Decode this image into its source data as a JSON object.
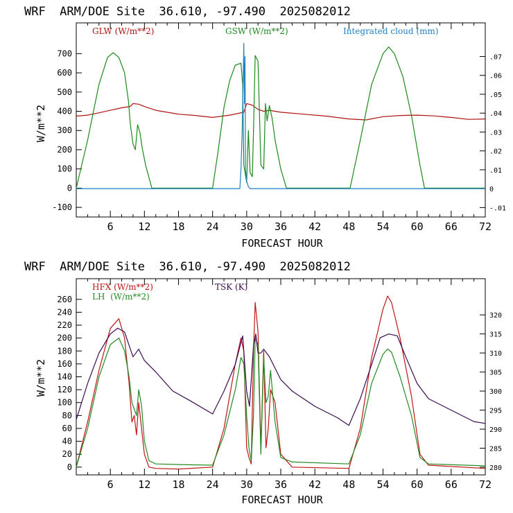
{
  "chart_data": [
    {
      "type": "line",
      "title": "WRF  ARM/DOE Site  36.610, -97.490  2025082012",
      "xlabel": "FORECAST HOUR",
      "ylabel": "W/m**2",
      "xlim": [
        0,
        72
      ],
      "ylim": [
        -150,
        860
      ],
      "y2lim": [
        -0.015,
        0.0878
      ],
      "xticks": [
        6,
        12,
        18,
        24,
        30,
        36,
        42,
        48,
        54,
        60,
        66,
        72
      ],
      "yticks": [
        -100,
        0,
        100,
        200,
        300,
        400,
        500,
        600,
        700
      ],
      "y2ticks": [
        -0.01,
        0,
        0.01,
        0.02,
        0.03,
        0.04,
        0.05,
        0.06,
        0.07
      ],
      "y2ticklabels": [
        "-.01",
        "0",
        ".01",
        ".02",
        ".03",
        ".04",
        ".05",
        ".06",
        ".07"
      ],
      "grid": false,
      "legend_placement": "top",
      "series": [
        {
          "name": "GLW (W/m**2)",
          "color": "#b01010",
          "axis": "left",
          "x": [
            0,
            2,
            4,
            6,
            8,
            9.5,
            10,
            11,
            12,
            14,
            18,
            21,
            24,
            27,
            29.5,
            30,
            31,
            32,
            33,
            34,
            36,
            40,
            44,
            48,
            51,
            54,
            57,
            60,
            63,
            66,
            69,
            72
          ],
          "y": [
            375,
            380,
            392,
            405,
            418,
            425,
            440,
            437,
            425,
            405,
            385,
            378,
            368,
            380,
            395,
            440,
            432,
            410,
            400,
            405,
            395,
            385,
            375,
            360,
            355,
            372,
            378,
            380,
            376,
            368,
            358,
            360
          ]
        },
        {
          "name": "GSW (W/m**2)",
          "color": "#1a8a1a",
          "axis": "left",
          "x": [
            0,
            2,
            4,
            5.5,
            6.5,
            7.5,
            8.5,
            9.2,
            9.5,
            9.8,
            10,
            10.4,
            10.8,
            11.2,
            11.6,
            12.2,
            13.3,
            24,
            25,
            26,
            27,
            28,
            29,
            29.3,
            29.5,
            30,
            30.3,
            30.6,
            31,
            31.2,
            31.5,
            32,
            32.5,
            33,
            33.3,
            33.6,
            34,
            34.5,
            35,
            36,
            37,
            48.2,
            50,
            52,
            54,
            55,
            56,
            57.5,
            59,
            60.5,
            61.3,
            72
          ],
          "y": [
            0,
            250,
            540,
            680,
            705,
            680,
            600,
            450,
            340,
            270,
            230,
            200,
            330,
            290,
            210,
            120,
            0,
            0,
            200,
            420,
            560,
            640,
            650,
            540,
            120,
            30,
            300,
            80,
            60,
            300,
            690,
            660,
            120,
            100,
            440,
            350,
            430,
            360,
            250,
            100,
            0,
            0,
            250,
            540,
            700,
            735,
            700,
            580,
            380,
            120,
            0,
            0
          ]
        },
        {
          "name": "Integrated cloud (mm)",
          "color": "#1f7fc4",
          "axis": "right",
          "x": [
            0,
            28.8,
            29.0,
            29.2,
            29.4,
            29.5,
            29.6,
            29.7,
            29.8,
            30.0,
            30.3,
            30.6,
            31.0,
            72
          ],
          "y": [
            0,
            0,
            0.01,
            0.03,
            0.06,
            0.077,
            0.045,
            0.07,
            0.01,
            0.004,
            0.001,
            0.0,
            0.0,
            0
          ]
        }
      ]
    },
    {
      "type": "line",
      "title": "WRF  ARM/DOE Site  36.610, -97.490  2025082012",
      "xlabel": "FORECAST HOUR",
      "ylabel": "W/m**2",
      "xlim": [
        0,
        72
      ],
      "ylim": [
        -12,
        292
      ],
      "y2lim": [
        278,
        329.5
      ],
      "xticks": [
        6,
        12,
        18,
        24,
        30,
        36,
        42,
        48,
        54,
        60,
        66,
        72
      ],
      "yticks": [
        0,
        20,
        40,
        60,
        80,
        100,
        120,
        140,
        160,
        180,
        200,
        220,
        240,
        260
      ],
      "y2ticks": [
        280,
        285,
        290,
        295,
        300,
        305,
        310,
        315,
        320
      ],
      "y2ticklabels": [
        "280",
        "285",
        "290",
        "295",
        "300",
        "305",
        "310",
        "315",
        "320"
      ],
      "grid": false,
      "legend_placement": "top-left",
      "series": [
        {
          "name": "HFX (W/m**2)",
          "color": "#c01414",
          "axis": "left",
          "x": [
            0,
            2,
            4,
            6,
            7.5,
            8.5,
            9.3,
            9.8,
            10.2,
            10.6,
            11,
            11.5,
            12,
            12.8,
            14,
            18,
            24,
            26,
            28,
            29,
            29.5,
            30,
            30.4,
            30.8,
            31.2,
            31.5,
            32,
            32.5,
            33,
            33.4,
            33.8,
            34.2,
            35,
            36,
            38,
            48,
            50,
            52,
            54,
            54.8,
            55.5,
            57,
            59,
            60.5,
            62,
            72
          ],
          "y": [
            0,
            70,
            150,
            215,
            230,
            200,
            130,
            70,
            80,
            50,
            100,
            60,
            20,
            0,
            -2,
            -3,
            0,
            60,
            160,
            200,
            180,
            30,
            15,
            5,
            180,
            255,
            210,
            30,
            180,
            30,
            60,
            120,
            100,
            20,
            0,
            -2,
            60,
            170,
            245,
            265,
            255,
            200,
            110,
            20,
            3,
            -2
          ]
        },
        {
          "name": "LH  (W/m**2)",
          "color": "#228b22",
          "axis": "left",
          "x": [
            0,
            2,
            4,
            6,
            7.5,
            8.5,
            9.3,
            9.8,
            10.2,
            10.6,
            11,
            11.5,
            12,
            12.8,
            14,
            18,
            24,
            26,
            28,
            29,
            29.5,
            30,
            30.4,
            30.8,
            31.2,
            31.5,
            32,
            32.5,
            33,
            33.4,
            33.8,
            34.2,
            35,
            36,
            38,
            48,
            50,
            52,
            54,
            54.8,
            55.5,
            57,
            59,
            60.5,
            62,
            72
          ],
          "y": [
            0,
            60,
            140,
            190,
            200,
            180,
            140,
            100,
            90,
            80,
            120,
            95,
            40,
            10,
            5,
            4,
            3,
            50,
            120,
            170,
            160,
            80,
            30,
            10,
            80,
            200,
            190,
            20,
            170,
            100,
            110,
            150,
            70,
            15,
            8,
            5,
            50,
            130,
            175,
            183,
            178,
            140,
            80,
            15,
            5,
            2
          ]
        },
        {
          "name": "TSK (K)",
          "color": "#3a0a52",
          "axis": "right",
          "x": [
            0,
            2,
            4,
            6,
            7.3,
            8.5,
            9.3,
            10,
            10.5,
            11,
            12,
            14,
            17,
            20,
            24,
            26,
            28,
            29.3,
            30,
            30.5,
            31.2,
            31.6,
            32,
            32.5,
            33,
            34,
            35,
            36,
            38,
            42,
            46,
            48,
            50,
            52,
            53.5,
            55,
            56.5,
            58,
            60,
            62,
            66,
            70,
            72
          ],
          "y": [
            292.5,
            302,
            310,
            315,
            316.5,
            315.5,
            312,
            309,
            310,
            311,
            308,
            305,
            300,
            297.5,
            294,
            300,
            307,
            314.5,
            300,
            296,
            312,
            315,
            310,
            310,
            311,
            309,
            306,
            303,
            300,
            296,
            293,
            291,
            298,
            307,
            314,
            315,
            314.5,
            309,
            302,
            298,
            295,
            292,
            291.5
          ]
        }
      ]
    }
  ]
}
